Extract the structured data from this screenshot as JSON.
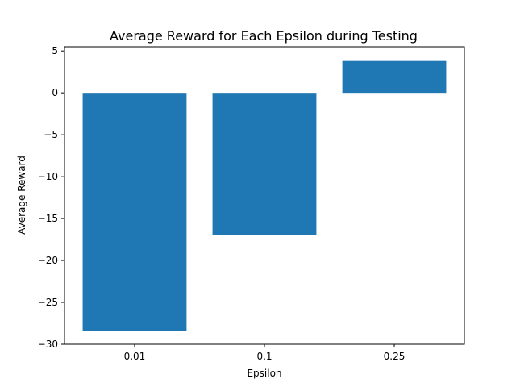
{
  "chart_data": {
    "type": "bar",
    "title": "Average Reward for Each Epsilon during Testing",
    "xlabel": "Epsilon",
    "ylabel": "Average Reward",
    "categories": [
      "0.01",
      "0.1",
      "0.25"
    ],
    "values": [
      -28.4,
      -17.0,
      3.8
    ],
    "ylim": [
      -30,
      5.5
    ],
    "yticks": [
      5,
      0,
      -5,
      -10,
      -15,
      -20,
      -25,
      -30
    ],
    "ytick_labels": [
      "5",
      "0",
      "−5",
      "−10",
      "−15",
      "−20",
      "−25",
      "−30"
    ],
    "bar_color": "#1f77b4",
    "grid": false,
    "legend": "none"
  }
}
